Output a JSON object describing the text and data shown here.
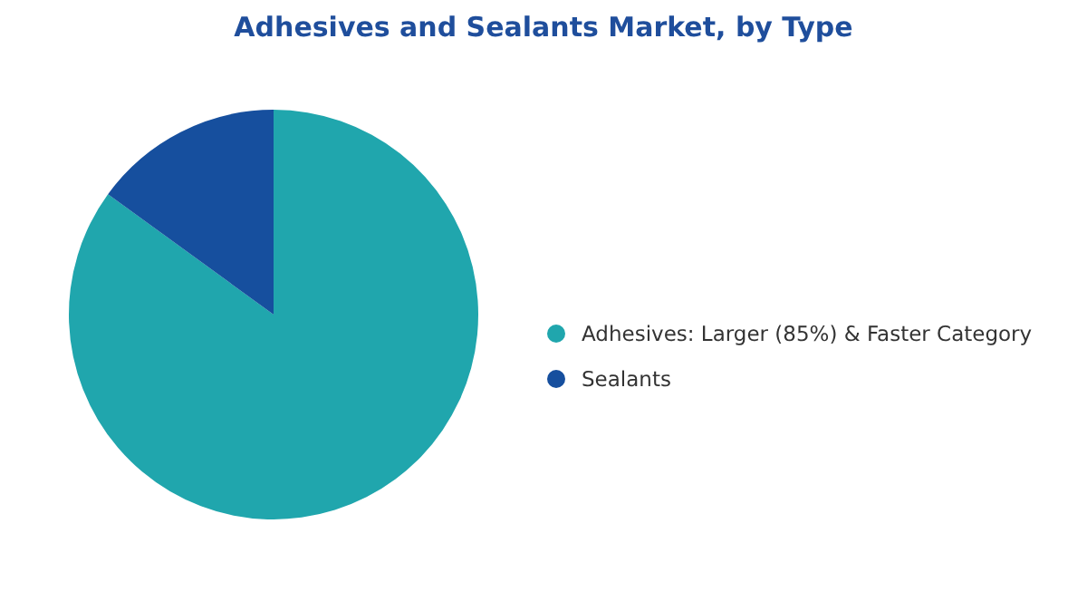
{
  "chart_data": {
    "type": "pie",
    "title": "Adhesives and Sealants Market, by Type",
    "categories": [
      "Adhesives: Larger (85%) & Faster Category",
      "Sealants"
    ],
    "values": [
      85,
      15
    ],
    "colors": [
      "#20a6ad",
      "#164f9e"
    ],
    "legend": "right"
  }
}
